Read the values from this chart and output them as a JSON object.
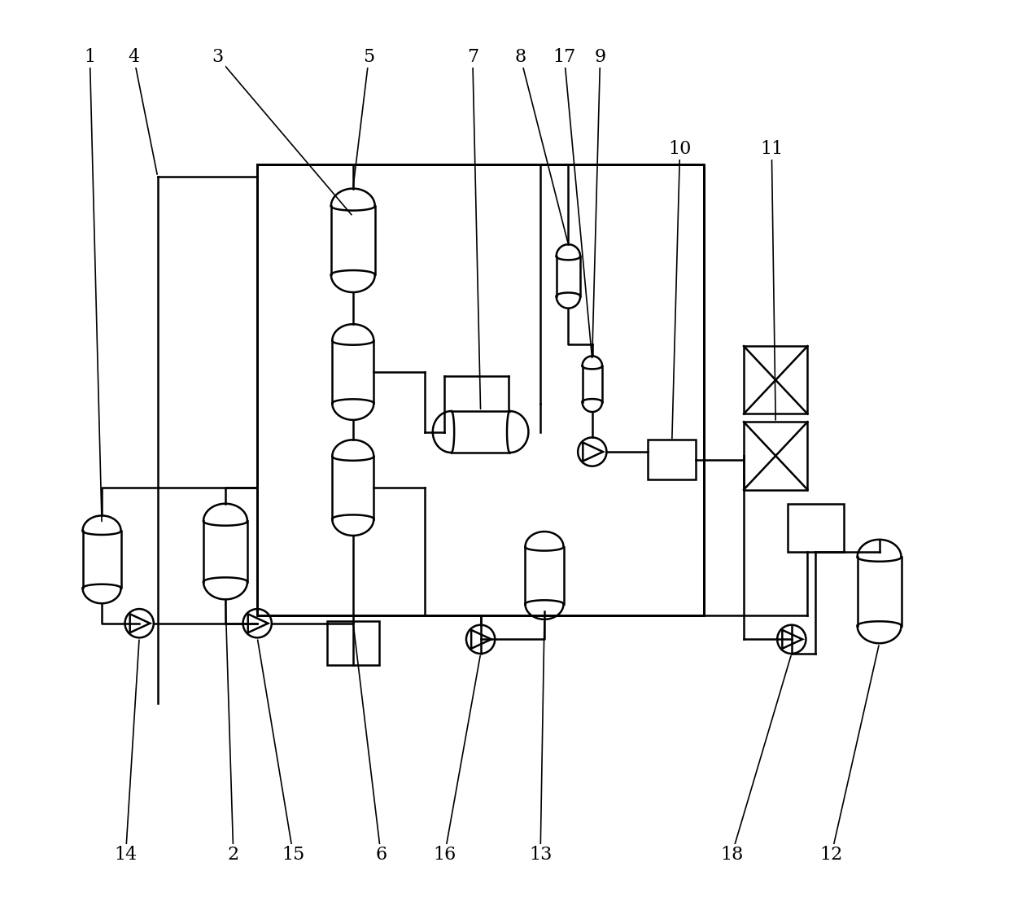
{
  "bg_color": "#ffffff",
  "lc": "#000000",
  "lw": 1.8,
  "label_fs": 16,
  "fig_w": 12.4,
  "fig_h": 11.13
}
